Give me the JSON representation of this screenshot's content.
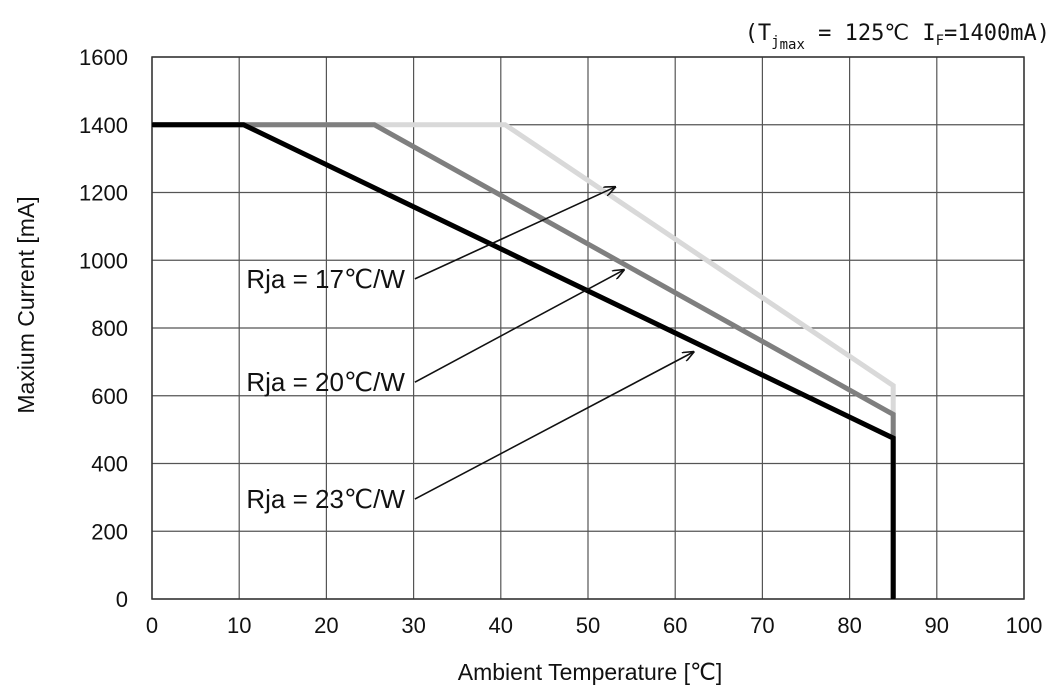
{
  "chart_data": {
    "type": "line",
    "title": "",
    "condition": {
      "open": "(T",
      "sub1": "j",
      "sub2": "max",
      "mid": " = 125℃ I",
      "sub3": "F",
      "end": "=1400mA)"
    },
    "xlabel": "Ambient Temperature [℃]",
    "ylabel": "Maxium Current [mA]",
    "xlim": [
      0,
      100
    ],
    "ylim": [
      0,
      1600
    ],
    "xticks": [
      0,
      10,
      20,
      30,
      40,
      50,
      60,
      70,
      80,
      90,
      100
    ],
    "yticks": [
      0,
      200,
      400,
      600,
      800,
      1000,
      1200,
      1400,
      1600
    ],
    "grid": true,
    "series": [
      {
        "name": "Rja = 17℃/W",
        "color": "#d9d9d9",
        "x": [
          0,
          40.5,
          85,
          85
        ],
        "y": [
          1400,
          1400,
          630,
          0
        ],
        "arrow_to": [
          53,
          1215
        ],
        "label_anchor": [
          29,
          945
        ]
      },
      {
        "name": "Rja = 20℃/W",
        "color": "#7f7f7f",
        "x": [
          0,
          25.5,
          85,
          85
        ],
        "y": [
          1400,
          1400,
          545,
          0
        ],
        "arrow_to": [
          54,
          970
        ],
        "label_anchor": [
          29,
          640
        ]
      },
      {
        "name": "Rja = 23℃/W",
        "color": "#000000",
        "x": [
          0,
          10.5,
          85,
          85
        ],
        "y": [
          1400,
          1400,
          475,
          0
        ],
        "arrow_to": [
          62,
          728
        ],
        "label_anchor": [
          29,
          295
        ]
      }
    ]
  }
}
